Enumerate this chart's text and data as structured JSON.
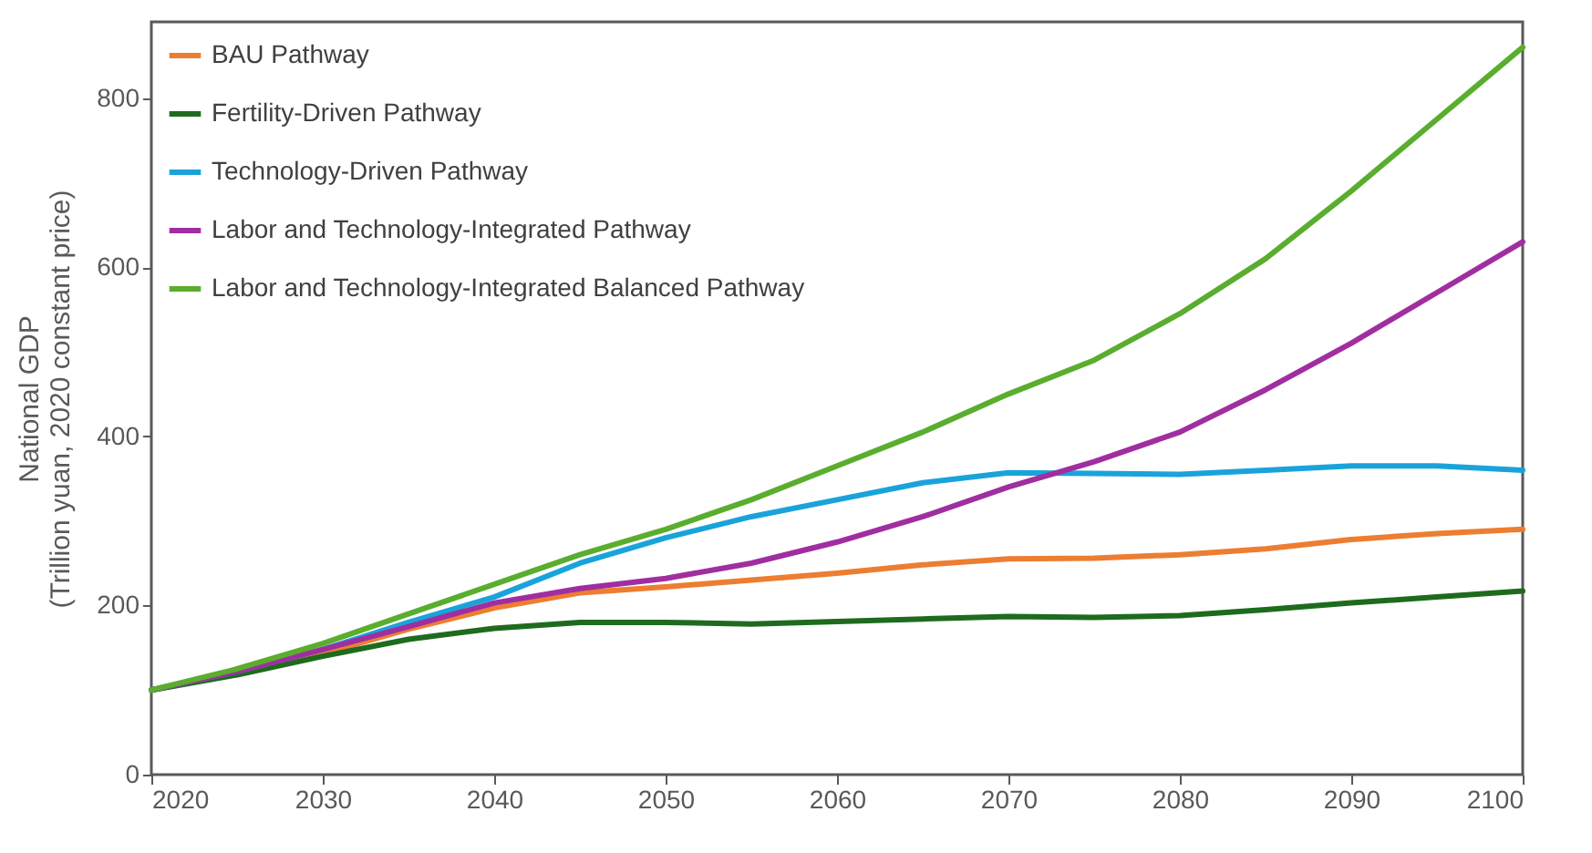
{
  "chart_data": {
    "type": "line",
    "ylabel": "National GDP\n(Trillion yuan, 2020 constant price)",
    "x": [
      2020,
      2025,
      2030,
      2035,
      2040,
      2045,
      2050,
      2055,
      2060,
      2065,
      2070,
      2075,
      2080,
      2085,
      2090,
      2095,
      2100
    ],
    "series": [
      {
        "name": "BAU Pathway",
        "color": "#ed7d31",
        "values": [
          100,
          120,
          143,
          172,
          197,
          215,
          222,
          230,
          238,
          248,
          255,
          256,
          260,
          267,
          278,
          285,
          290
        ]
      },
      {
        "name": "Fertility-Driven Pathway",
        "color": "#1e6b1e",
        "values": [
          100,
          118,
          140,
          160,
          173,
          180,
          180,
          178,
          181,
          184,
          187,
          186,
          188,
          195,
          203,
          210,
          217
        ]
      },
      {
        "name": "Technology-Driven Pathway",
        "color": "#1aa3db",
        "values": [
          100,
          122,
          148,
          180,
          210,
          250,
          280,
          305,
          325,
          345,
          357,
          356,
          355,
          360,
          365,
          365,
          360
        ]
      },
      {
        "name": "Labor and Technology-Integrated Pathway",
        "color": "#a02ea0",
        "values": [
          100,
          122,
          148,
          175,
          203,
          220,
          232,
          250,
          275,
          305,
          340,
          370,
          405,
          455,
          510,
          570,
          630
        ]
      },
      {
        "name": "Labor and Technology-Integrated Balanced Pathway",
        "color": "#5aad2e",
        "values": [
          100,
          125,
          155,
          190,
          225,
          260,
          290,
          325,
          365,
          405,
          450,
          490,
          545,
          610,
          690,
          775,
          860
        ]
      }
    ],
    "xlim": [
      2020,
      2100
    ],
    "xticks": [
      2020,
      2030,
      2040,
      2050,
      2060,
      2070,
      2080,
      2090,
      2100
    ],
    "ylim": [
      0,
      890
    ],
    "yticks": [
      0,
      200,
      400,
      600,
      800
    ],
    "grid": false,
    "legend": "top left",
    "line_style": "solid",
    "marker": "none"
  }
}
